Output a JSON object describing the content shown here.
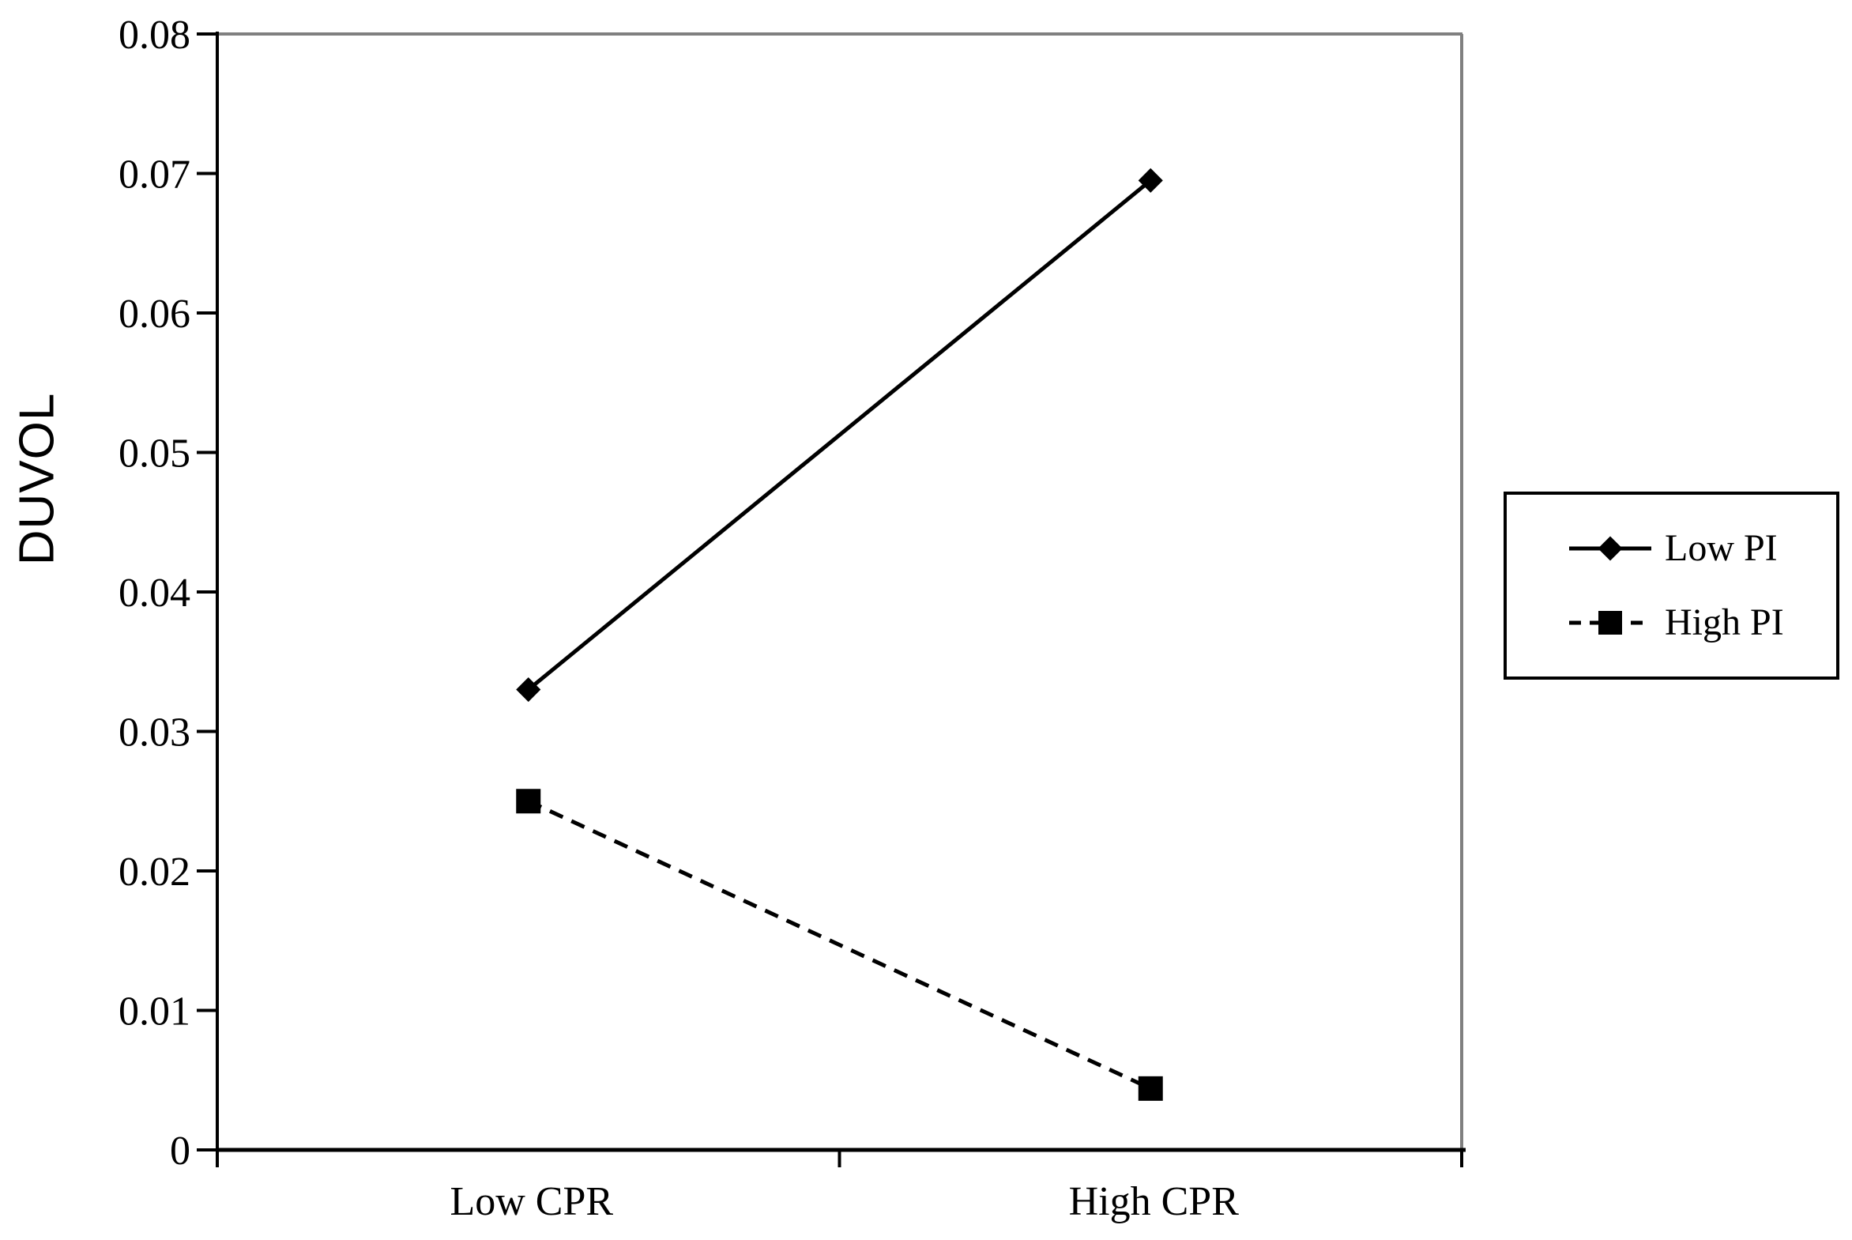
{
  "chart_data": {
    "type": "line",
    "title": "",
    "xlabel": "",
    "ylabel": "DUVOL",
    "categories": [
      "Low CPR",
      "High CPR"
    ],
    "series": [
      {
        "name": "Low PI",
        "values": [
          0.033,
          0.0695
        ],
        "line_style": "solid",
        "marker": "diamond"
      },
      {
        "name": "High PI",
        "values": [
          0.025,
          0.0044
        ],
        "line_style": "dashed",
        "marker": "square"
      }
    ],
    "ylim": [
      0,
      0.08
    ],
    "y_ticks": [
      0,
      0.01,
      0.02,
      0.03,
      0.04,
      0.05,
      0.06,
      0.07,
      0.08
    ],
    "y_tick_labels": [
      "0",
      "0.01",
      "0.02",
      "0.03",
      "0.04",
      "0.05",
      "0.06",
      "0.07",
      "0.08"
    ],
    "grid": false,
    "legend_position": "right",
    "colors": {
      "series": "#000000",
      "axis": "#000000",
      "plot_border": "#808080",
      "background": "#ffffff",
      "text": "#000000"
    }
  }
}
